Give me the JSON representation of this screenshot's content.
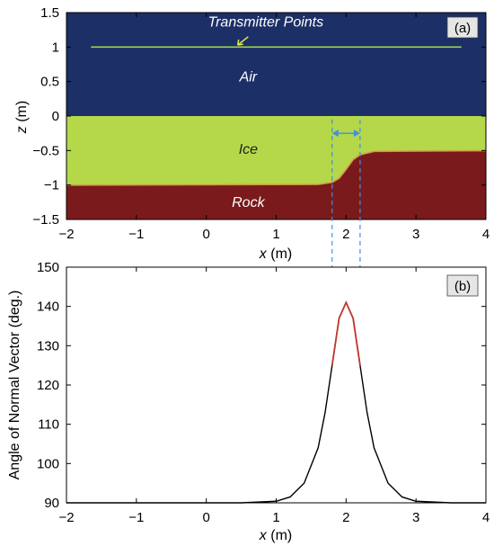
{
  "chart_data": [
    {
      "panel": "(a)",
      "type": "area",
      "xlabel_italic": "x",
      "xlabel_unit": "(m)",
      "ylabel_italic": "z",
      "ylabel_unit": "(m)",
      "xlim": [
        -2,
        4
      ],
      "ylim": [
        -1.5,
        1.5
      ],
      "xticks": [
        "−2",
        "−1",
        "0",
        "1",
        "2",
        "3",
        "4"
      ],
      "yticks": [
        "1.5",
        "1",
        "0.5",
        "0",
        "−0.5",
        "−1",
        "−1.5"
      ],
      "regions": [
        {
          "name": "Air",
          "color": "#1c2f66"
        },
        {
          "name": "Ice",
          "color": "#b5d84a"
        },
        {
          "name": "Rock",
          "color": "#7a1a1c"
        }
      ],
      "ice_surface_z": 0,
      "rock_interface": {
        "left_z": -1.0,
        "right_z": -0.5,
        "x": [
          -2,
          1.6,
          1.8,
          1.9,
          2.0,
          2.1,
          2.2,
          2.4,
          4
        ],
        "z": [
          -1.0,
          -0.99,
          -0.96,
          -0.9,
          -0.77,
          -0.63,
          -0.56,
          -0.51,
          -0.5
        ]
      },
      "transmitter_line": {
        "label": "Transmitter Points",
        "x": [
          -1.65,
          3.65
        ],
        "z": 1.0,
        "color": "#9ed64a"
      },
      "highlight_span": {
        "x": [
          1.8,
          2.2
        ],
        "color": "#3f8fe6"
      },
      "grid": false
    },
    {
      "panel": "(b)",
      "type": "line",
      "xlabel_italic": "x",
      "xlabel_unit": "(m)",
      "ylabel": "Angle of Normal Vector (deg.)",
      "xlim": [
        -2,
        4
      ],
      "ylim": [
        90,
        150
      ],
      "xticks": [
        "−2",
        "−1",
        "0",
        "1",
        "2",
        "3",
        "4"
      ],
      "yticks": [
        "150",
        "140",
        "130",
        "120",
        "110",
        "100",
        "90"
      ],
      "series": [
        {
          "color": "#000000",
          "highlight_color": "#c0392b",
          "highlight_x": [
            1.8,
            2.2
          ],
          "peak_x": 2.0,
          "peak_value": 141,
          "baseline_value": 90,
          "x": [
            -2,
            0.5,
            1.0,
            1.2,
            1.4,
            1.6,
            1.7,
            1.8,
            1.9,
            2.0,
            2.1,
            2.2,
            2.3,
            2.4,
            2.6,
            2.8,
            3.0,
            3.5,
            4
          ],
          "y": [
            90,
            90,
            90.4,
            91.5,
            95,
            104,
            113,
            125,
            137,
            141,
            137,
            125,
            113,
            104,
            95,
            91.5,
            90.4,
            90,
            90
          ]
        }
      ],
      "grid": false
    }
  ]
}
